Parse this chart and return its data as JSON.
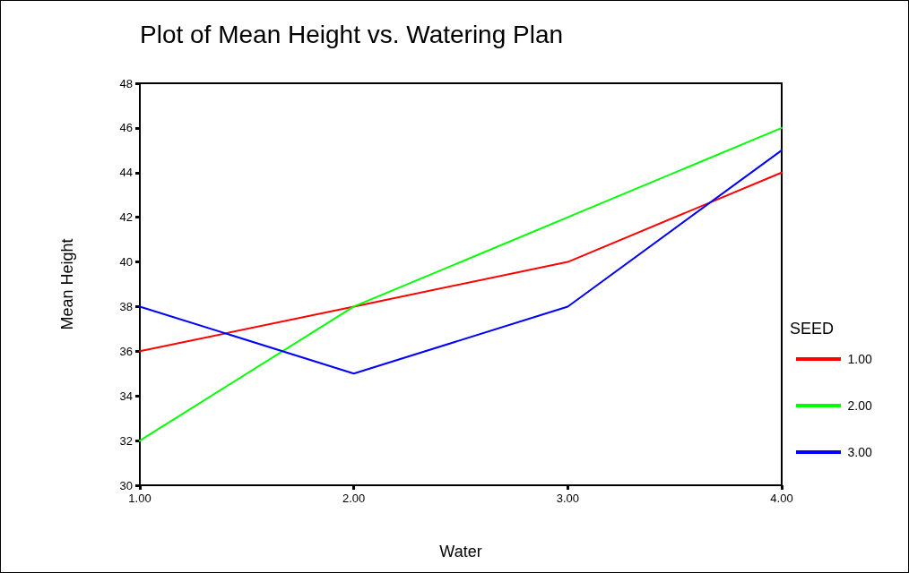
{
  "chart_data": {
    "type": "line",
    "title": "Plot of Mean Height vs. Watering Plan",
    "xlabel": "Water",
    "ylabel": "Mean Height",
    "legend_title": "SEED",
    "x": [
      1,
      2,
      3,
      4
    ],
    "series": [
      {
        "name": "1.00",
        "color": "#ff0000",
        "values": [
          36,
          38,
          40,
          44
        ]
      },
      {
        "name": "2.00",
        "color": "#00ff00",
        "values": [
          32,
          38,
          42,
          46
        ]
      },
      {
        "name": "3.00",
        "color": "#0000ff",
        "values": [
          38,
          35,
          38,
          45
        ]
      }
    ],
    "xlim": [
      1,
      4
    ],
    "xticks": [
      {
        "value": 1,
        "label": "1.00"
      },
      {
        "value": 2,
        "label": "2.00"
      },
      {
        "value": 3,
        "label": "3.00"
      },
      {
        "value": 4,
        "label": "4.00"
      }
    ],
    "ylim": [
      30,
      48
    ],
    "yticks": [
      30,
      32,
      34,
      36,
      38,
      40,
      42,
      44,
      46,
      48
    ],
    "grid": false,
    "legend": "right",
    "marker": "none",
    "line_style": "solid"
  }
}
